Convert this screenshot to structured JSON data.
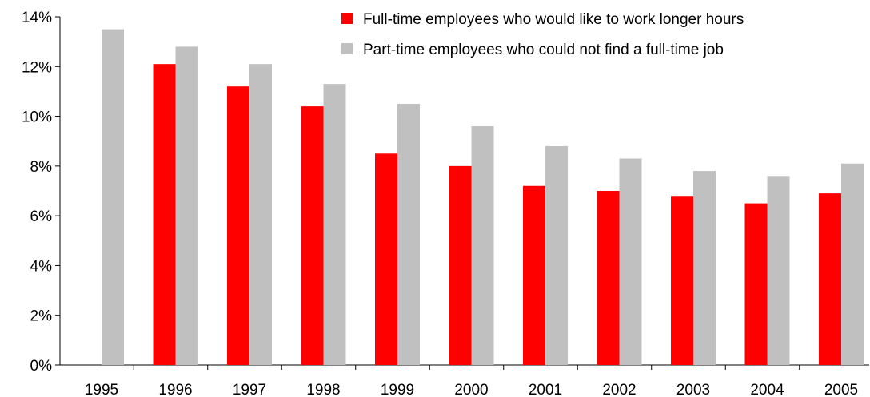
{
  "chart_data": {
    "type": "bar",
    "categories": [
      "1995",
      "1996",
      "1997",
      "1998",
      "1999",
      "2000",
      "2001",
      "2002",
      "2003",
      "2004",
      "2005"
    ],
    "series": [
      {
        "name": "Full-time employees who would like to work longer hours",
        "color": "#ff0000",
        "values": [
          null,
          12.1,
          11.2,
          10.4,
          8.5,
          8.0,
          7.2,
          7.0,
          6.8,
          6.5,
          6.9
        ]
      },
      {
        "name": "Part-time employees who could not find a full-time job",
        "color": "#c0c0c0",
        "values": [
          13.5,
          12.8,
          12.1,
          11.3,
          10.5,
          9.6,
          8.8,
          8.3,
          7.8,
          7.6,
          8.1
        ]
      }
    ],
    "yticks": [
      "0%",
      "2%",
      "4%",
      "6%",
      "8%",
      "10%",
      "12%",
      "14%"
    ],
    "ylim": [
      0,
      14
    ],
    "legend_position": "top-right",
    "grid": false
  }
}
